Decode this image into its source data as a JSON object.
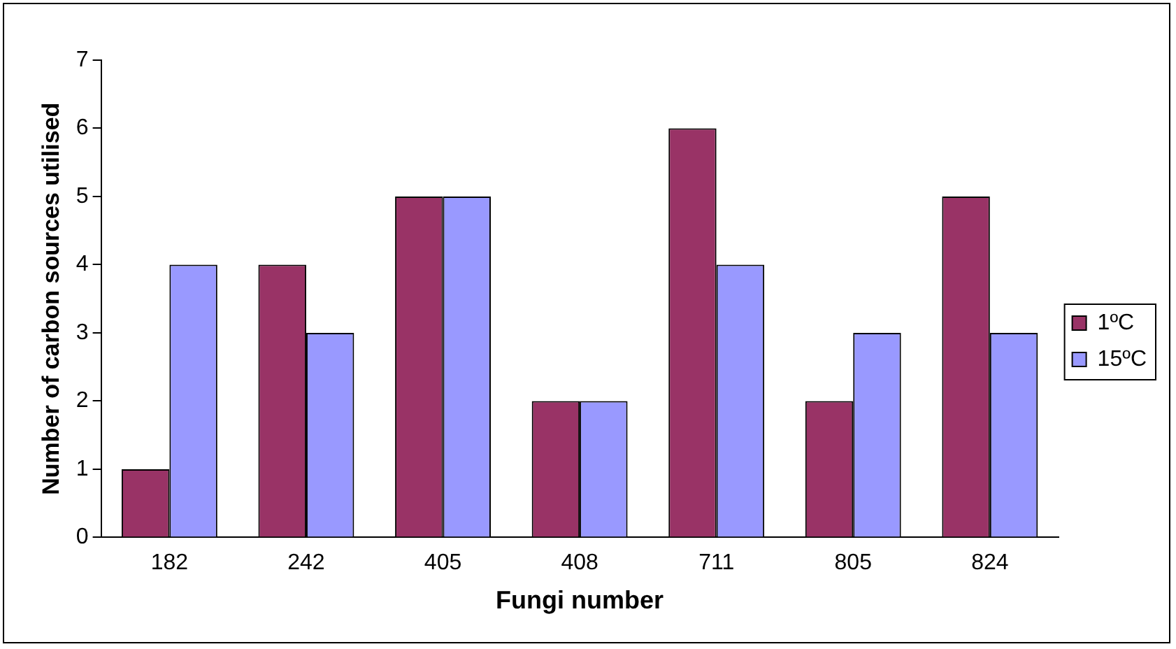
{
  "chart_data": {
    "type": "bar",
    "xlabel": "Fungi number",
    "ylabel": "Number of carbon sources utilised",
    "categories": [
      "182",
      "242",
      "405",
      "408",
      "711",
      "805",
      "824"
    ],
    "series": [
      {
        "name": "1ºC",
        "color": "#993366",
        "values": [
          1,
          4,
          5,
          2,
          6,
          2,
          5
        ]
      },
      {
        "name": "15ºC",
        "color": "#9999ff",
        "values": [
          4,
          3,
          5,
          2,
          4,
          3,
          3
        ]
      }
    ],
    "ylim": [
      0,
      7
    ],
    "yticks": [
      0,
      1,
      2,
      3,
      4,
      5,
      6,
      7
    ],
    "grid": false,
    "legend": "right"
  }
}
